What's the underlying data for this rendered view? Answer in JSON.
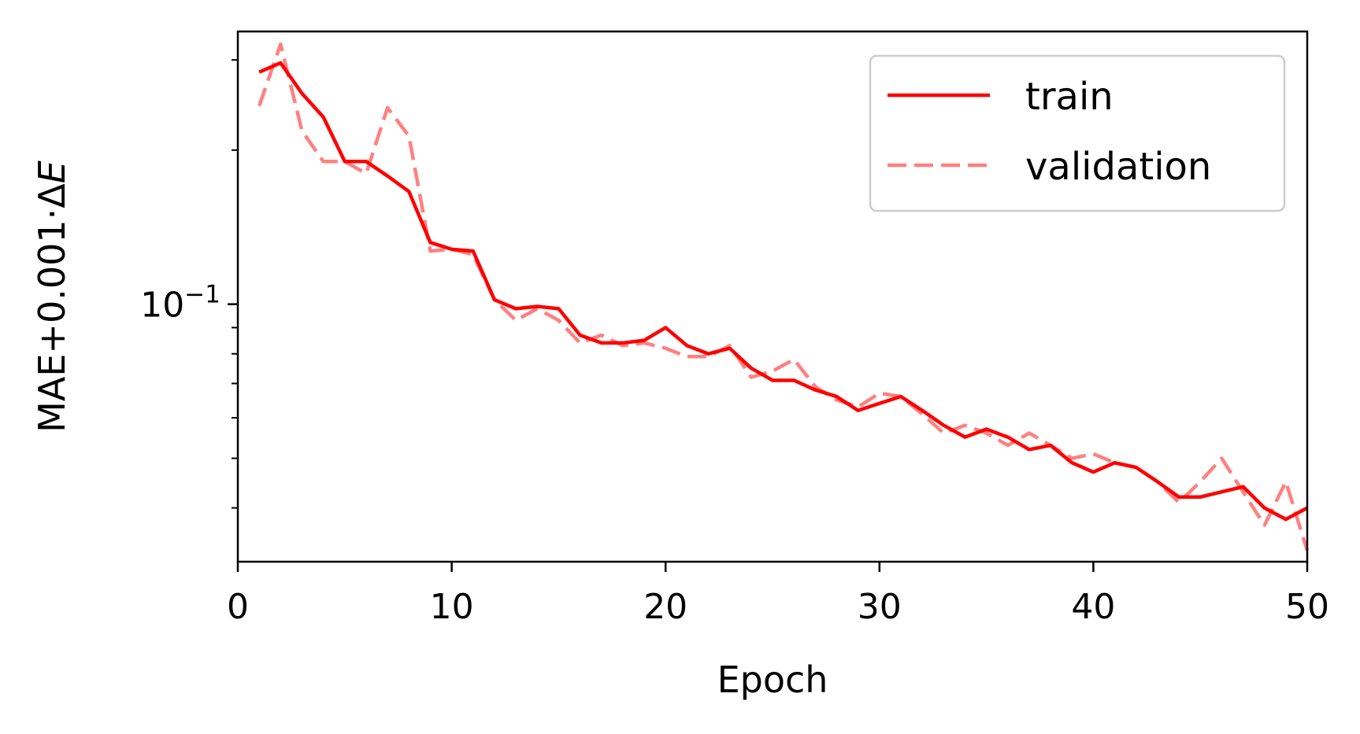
{
  "chart_data": {
    "type": "line",
    "xlabel": "Epoch",
    "ylabel": "MAE+0.001·ΔE",
    "ylabel_parts": {
      "main": "MAE+0.001·Δ",
      "italic": "E"
    },
    "xlim": [
      0,
      50
    ],
    "ylim": [
      0.0314,
      0.341
    ],
    "yscale": "log",
    "grid": false,
    "legend_position": "top-right",
    "x_ticks": [
      {
        "value": 0,
        "label": "0"
      },
      {
        "value": 10,
        "label": "10"
      },
      {
        "value": 20,
        "label": "20"
      },
      {
        "value": 30,
        "label": "30"
      },
      {
        "value": 40,
        "label": "40"
      },
      {
        "value": 50,
        "label": "50"
      }
    ],
    "y_major_ticks": [
      {
        "value": 0.1,
        "base": "10",
        "exponent": "−1"
      }
    ],
    "y_minor_ticks": [
      0.04,
      0.05,
      0.06,
      0.07,
      0.08,
      0.09,
      0.2,
      0.3
    ],
    "x": [
      1,
      2,
      3,
      4,
      5,
      6,
      7,
      8,
      9,
      10,
      11,
      12,
      13,
      14,
      15,
      16,
      17,
      18,
      19,
      20,
      21,
      22,
      23,
      24,
      25,
      26,
      27,
      28,
      29,
      30,
      31,
      32,
      33,
      34,
      35,
      36,
      37,
      38,
      39,
      40,
      41,
      42,
      43,
      44,
      45,
      46,
      47,
      48,
      49,
      50
    ],
    "series": [
      {
        "name": "train",
        "color": "#ff0000",
        "line_style": "solid",
        "values": [
          0.284,
          0.296,
          0.258,
          0.232,
          0.19,
          0.19,
          0.178,
          0.166,
          0.132,
          0.128,
          0.127,
          0.102,
          0.098,
          0.099,
          0.098,
          0.087,
          0.084,
          0.084,
          0.085,
          0.09,
          0.083,
          0.08,
          0.082,
          0.075,
          0.071,
          0.071,
          0.068,
          0.066,
          0.062,
          0.064,
          0.066,
          0.062,
          0.058,
          0.055,
          0.057,
          0.055,
          0.052,
          0.053,
          0.049,
          0.047,
          0.049,
          0.048,
          0.045,
          0.042,
          0.042,
          0.043,
          0.044,
          0.04,
          0.038,
          0.04
        ]
      },
      {
        "name": "validation",
        "color": "#ff8080",
        "line_style": "dashed",
        "values": [
          0.244,
          0.322,
          0.218,
          0.19,
          0.19,
          0.18,
          0.242,
          0.213,
          0.127,
          0.128,
          0.125,
          0.102,
          0.093,
          0.098,
          0.093,
          0.084,
          0.087,
          0.083,
          0.084,
          0.082,
          0.079,
          0.079,
          0.083,
          0.072,
          0.074,
          0.078,
          0.069,
          0.065,
          0.063,
          0.067,
          0.066,
          0.061,
          0.056,
          0.058,
          0.056,
          0.053,
          0.056,
          0.053,
          0.05,
          0.051,
          0.049,
          0.048,
          0.045,
          0.041,
          0.045,
          0.05,
          0.043,
          0.037,
          0.045,
          0.033
        ]
      }
    ]
  }
}
